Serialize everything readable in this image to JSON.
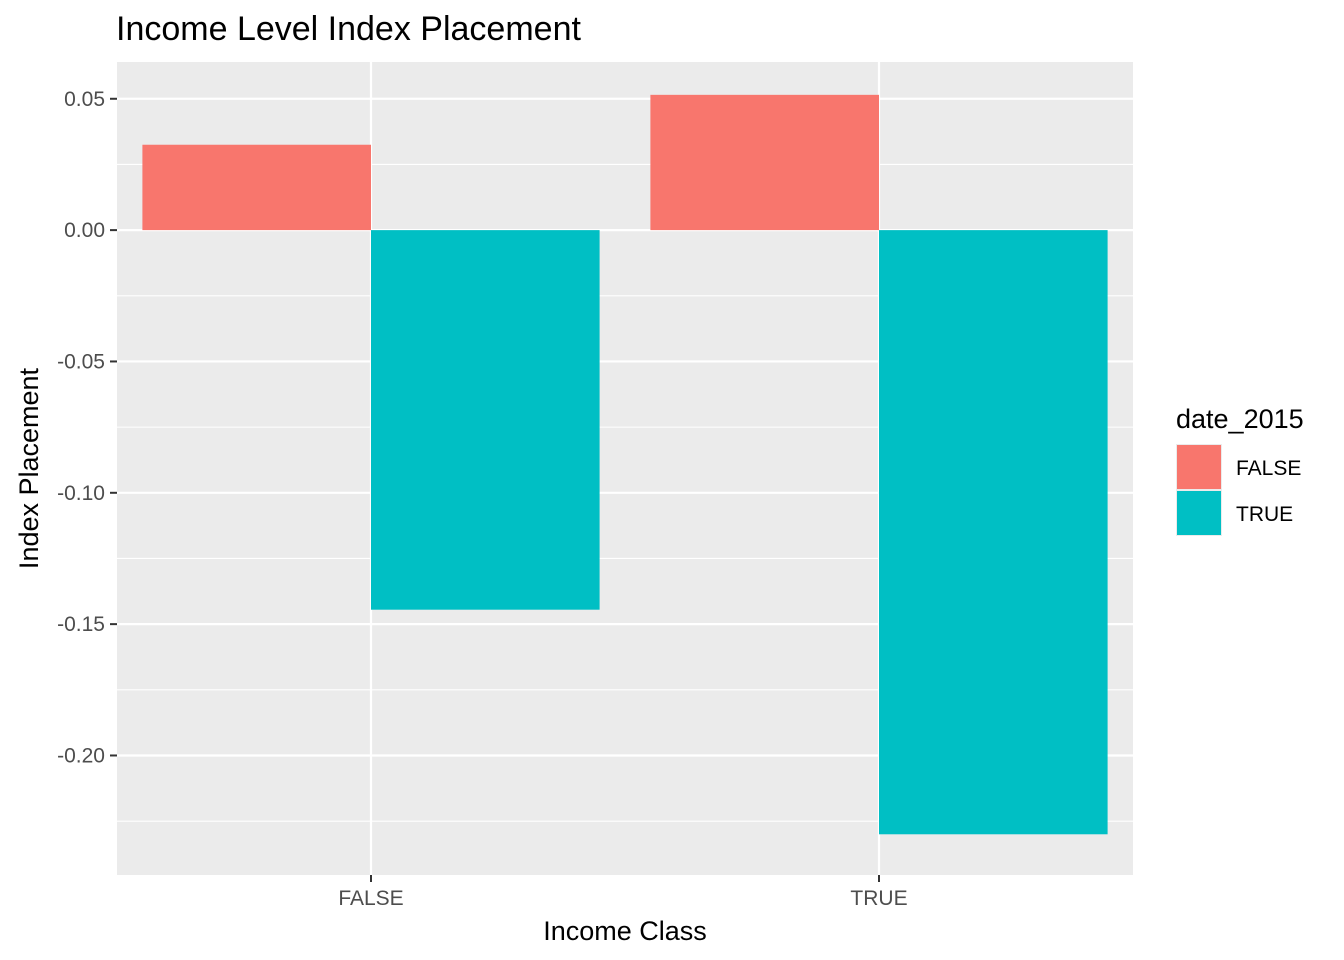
{
  "chart_data": {
    "type": "bar",
    "title": "Income Level Index Placement",
    "xlabel": "Income Class",
    "ylabel": "Index Placement",
    "categories": [
      "FALSE",
      "TRUE"
    ],
    "series": [
      {
        "name": "FALSE",
        "color": "#F8766D",
        "values": [
          0.0325,
          0.0515
        ]
      },
      {
        "name": "TRUE",
        "color": "#00BFC4",
        "values": [
          -0.1445,
          -0.23
        ]
      }
    ],
    "ylim": [
      -0.2455,
      0.064
    ],
    "yticks": [
      0.05,
      0.0,
      -0.05,
      -0.1,
      -0.15,
      -0.2
    ],
    "ytick_labels": [
      "0.05",
      "0.00",
      "-0.05",
      "-0.10",
      "-0.15",
      "-0.20"
    ],
    "grid": true,
    "legend": {
      "title": "date_2015",
      "position": "right",
      "entries": [
        "FALSE",
        "TRUE"
      ]
    },
    "background": "#EBEBEB"
  }
}
